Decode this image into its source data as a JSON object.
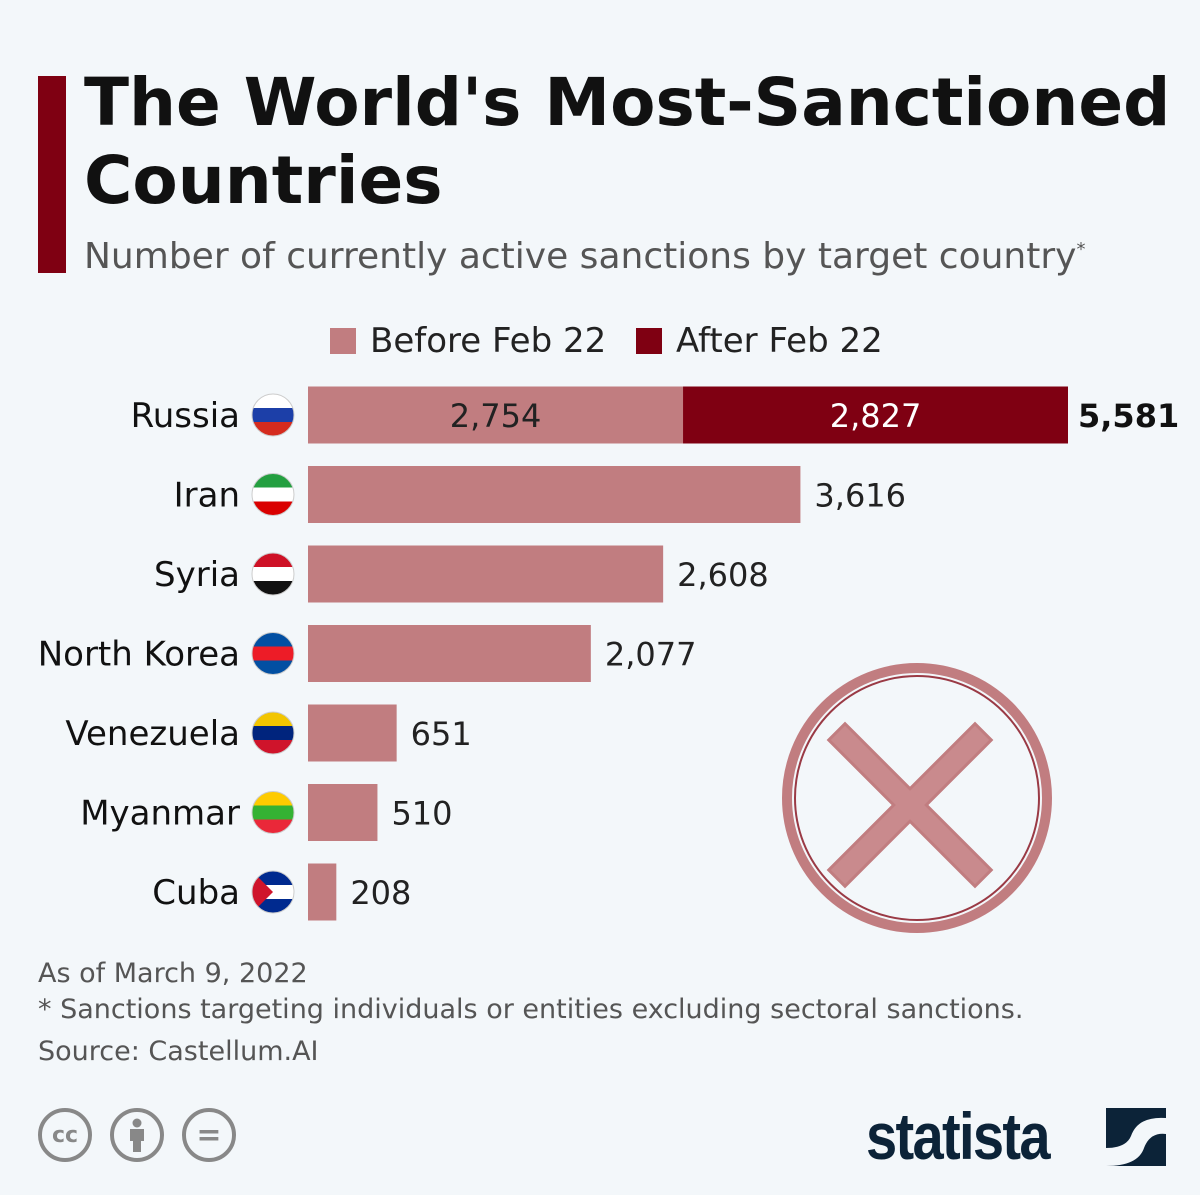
{
  "title": "The World's Most-Sanctioned Countries",
  "subtitle": "Number of currently active sanctions by target country",
  "subtitle_mark": "*",
  "footnotes": {
    "date": "As of March 9, 2022",
    "note": "* Sanctions targeting individuals or entities excluding sectoral sanctions.",
    "source": "Source: Castellum.AI"
  },
  "license_icons": [
    "cc-icon",
    "by-attribution-icon",
    "no-derivatives-icon"
  ],
  "license_labels": {
    "cc": "cc",
    "nd": "="
  },
  "logo": "statista",
  "chart_data": {
    "type": "bar",
    "orientation": "horizontal",
    "stacked": true,
    "legend_placement": "top",
    "grid": false,
    "categories": [
      "Russia",
      "Iran",
      "Syria",
      "North Korea",
      "Venezuela",
      "Myanmar",
      "Cuba"
    ],
    "flags": [
      "russia-flag",
      "iran-flag",
      "syria-flag",
      "north-korea-flag",
      "venezuela-flag",
      "myanmar-flag",
      "cuba-flag"
    ],
    "series": [
      {
        "name": "Before Feb 22",
        "color": "#c17d80",
        "values": [
          2754,
          3616,
          2608,
          2077,
          651,
          510,
          208
        ],
        "labels": [
          "2,754",
          "3,616",
          "2,608",
          "2,077",
          "651",
          "510",
          "208"
        ]
      },
      {
        "name": "After Feb 22",
        "color": "#7f0012",
        "values": [
          2827,
          0,
          0,
          0,
          0,
          0,
          0
        ],
        "labels": [
          "2,827",
          "",
          "",
          "",
          "",
          "",
          ""
        ]
      }
    ],
    "totals": [
      "5,581",
      "",
      "",
      "",
      "",
      "",
      ""
    ],
    "xlim": [
      0,
      5581
    ]
  }
}
